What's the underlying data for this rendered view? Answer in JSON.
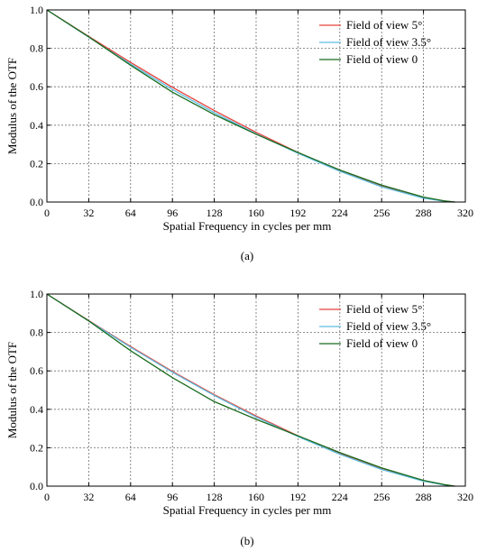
{
  "chart_data": [
    {
      "type": "line",
      "panel_label": "(a)",
      "xlabel": "Spatial Frequency in cycles per mm",
      "ylabel": "Modulus of the OTF",
      "xlim": [
        0,
        320
      ],
      "ylim": [
        0,
        1.0
      ],
      "xticks": [
        "0",
        "32",
        "64",
        "96",
        "128",
        "160",
        "192",
        "224",
        "256",
        "288",
        "320"
      ],
      "yticks": [
        "0.0",
        "0.2",
        "0.4",
        "0.6",
        "0.8",
        "1.0"
      ],
      "grid": true,
      "legend_position": "top-right",
      "series": [
        {
          "name": "Field of view 5°",
          "color": "#e8403a",
          "x": [
            0,
            32,
            64,
            96,
            128,
            160,
            192,
            224,
            256,
            288,
            304,
            312
          ],
          "y": [
            1.0,
            0.862,
            0.727,
            0.597,
            0.476,
            0.363,
            0.258,
            0.163,
            0.082,
            0.022,
            0.005,
            0.0
          ]
        },
        {
          "name": "Field of view 3.5°",
          "color": "#5bbde0",
          "x": [
            0,
            32,
            64,
            96,
            128,
            160,
            192,
            224,
            256,
            288,
            304,
            312
          ],
          "y": [
            1.0,
            0.858,
            0.718,
            0.586,
            0.465,
            0.355,
            0.254,
            0.16,
            0.079,
            0.02,
            0.004,
            0.0
          ]
        },
        {
          "name": "Field of view 0",
          "color": "#1a6b1e",
          "x": [
            0,
            32,
            64,
            96,
            128,
            160,
            192,
            224,
            256,
            288,
            304,
            312
          ],
          "y": [
            1.0,
            0.86,
            0.712,
            0.572,
            0.455,
            0.353,
            0.258,
            0.167,
            0.088,
            0.026,
            0.006,
            0.0
          ]
        }
      ]
    },
    {
      "type": "line",
      "panel_label": "(b)",
      "xlabel": "Spatial Frequency in cycles per mm",
      "ylabel": "Modulus of the OTF",
      "xlim": [
        0,
        320
      ],
      "ylim": [
        0,
        1.0
      ],
      "xticks": [
        "0",
        "32",
        "64",
        "96",
        "128",
        "160",
        "192",
        "224",
        "256",
        "288",
        "320"
      ],
      "yticks": [
        "0.0",
        "0.2",
        "0.4",
        "0.6",
        "0.8",
        "1.0"
      ],
      "grid": true,
      "legend_position": "top-right",
      "series": [
        {
          "name": "Field of view 5°",
          "color": "#e8403a",
          "x": [
            0,
            32,
            64,
            96,
            128,
            160,
            192,
            224,
            256,
            288,
            304,
            312
          ],
          "y": [
            1.0,
            0.862,
            0.727,
            0.597,
            0.476,
            0.365,
            0.262,
            0.17,
            0.09,
            0.028,
            0.007,
            0.0
          ]
        },
        {
          "name": "Field of view 3.5°",
          "color": "#5bbde0",
          "x": [
            0,
            32,
            64,
            96,
            128,
            160,
            192,
            224,
            256,
            288,
            304,
            312
          ],
          "y": [
            1.0,
            0.86,
            0.723,
            0.593,
            0.472,
            0.36,
            0.258,
            0.166,
            0.087,
            0.026,
            0.006,
            0.0
          ]
        },
        {
          "name": "Field of view 0",
          "color": "#1a6b1e",
          "x": [
            0,
            32,
            64,
            96,
            128,
            160,
            192,
            224,
            256,
            288,
            304,
            312
          ],
          "y": [
            1.0,
            0.86,
            0.705,
            0.565,
            0.44,
            0.348,
            0.262,
            0.175,
            0.095,
            0.03,
            0.008,
            0.0
          ]
        }
      ]
    }
  ]
}
